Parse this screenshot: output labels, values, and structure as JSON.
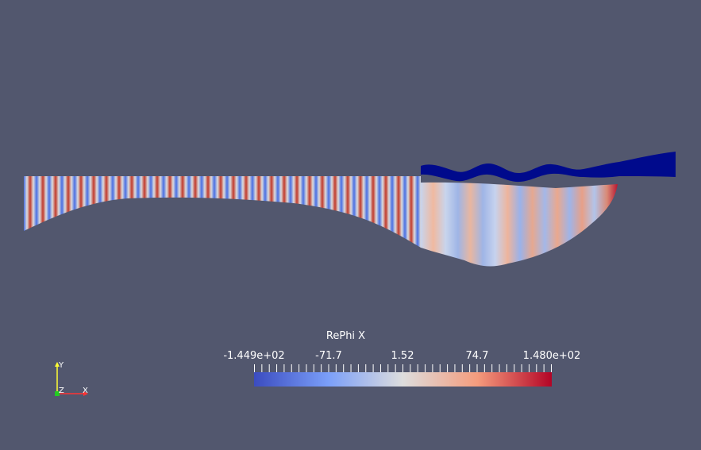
{
  "colorbar": {
    "title": "RePhi X",
    "labels": [
      "-1.449e+02",
      "-71.7",
      "1.52",
      "74.7",
      "1.480e+02"
    ],
    "min": -144.9,
    "max": 148.0,
    "colors": {
      "low": "#3b4cc0",
      "mid": "#dddddd",
      "high": "#b40426"
    }
  },
  "orientation_axes": {
    "x_label": "X",
    "y_label": "Y",
    "z_label": "Z",
    "x_color": "#ff3333",
    "y_color": "#ffff33",
    "z_color": "#22cc22"
  },
  "scene": {
    "background": "#52576e",
    "free_surface_color": "#000a8c"
  }
}
